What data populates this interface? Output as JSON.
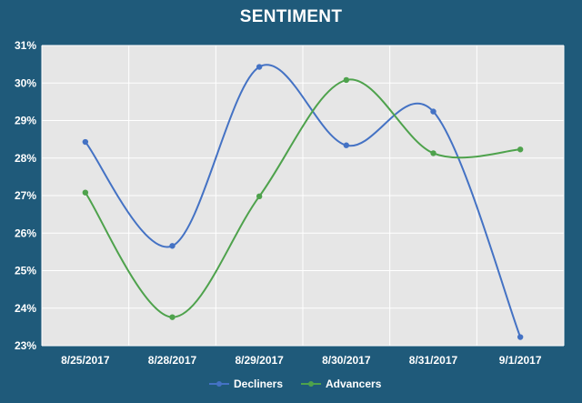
{
  "chart_data": {
    "type": "line",
    "title": "SENTIMENT",
    "xlabel": "",
    "ylabel": "",
    "categories": [
      "8/25/2017",
      "8/28/2017",
      "8/29/2017",
      "8/30/2017",
      "8/31/2017",
      "9/1/2017"
    ],
    "ylim": [
      0.23,
      0.31
    ],
    "yticks": [
      "23%",
      "24%",
      "25%",
      "26%",
      "27%",
      "28%",
      "29%",
      "30%",
      "31%"
    ],
    "grid": true,
    "smooth": true,
    "legend": "bottom",
    "series": [
      {
        "name": "Decliners",
        "color": "#4472c4",
        "values": [
          0.2843,
          0.2566,
          0.3043,
          0.2834,
          0.2924,
          0.2323
        ]
      },
      {
        "name": "Advancers",
        "color": "#4ea24c",
        "values": [
          0.2708,
          0.2376,
          0.2698,
          0.3008,
          0.2813,
          0.2823
        ]
      }
    ],
    "colors": {
      "plot_background": "#e6e6e6",
      "frame": "#1f5a7a",
      "gridline": "#ffffff",
      "text": "#ffffff"
    }
  }
}
